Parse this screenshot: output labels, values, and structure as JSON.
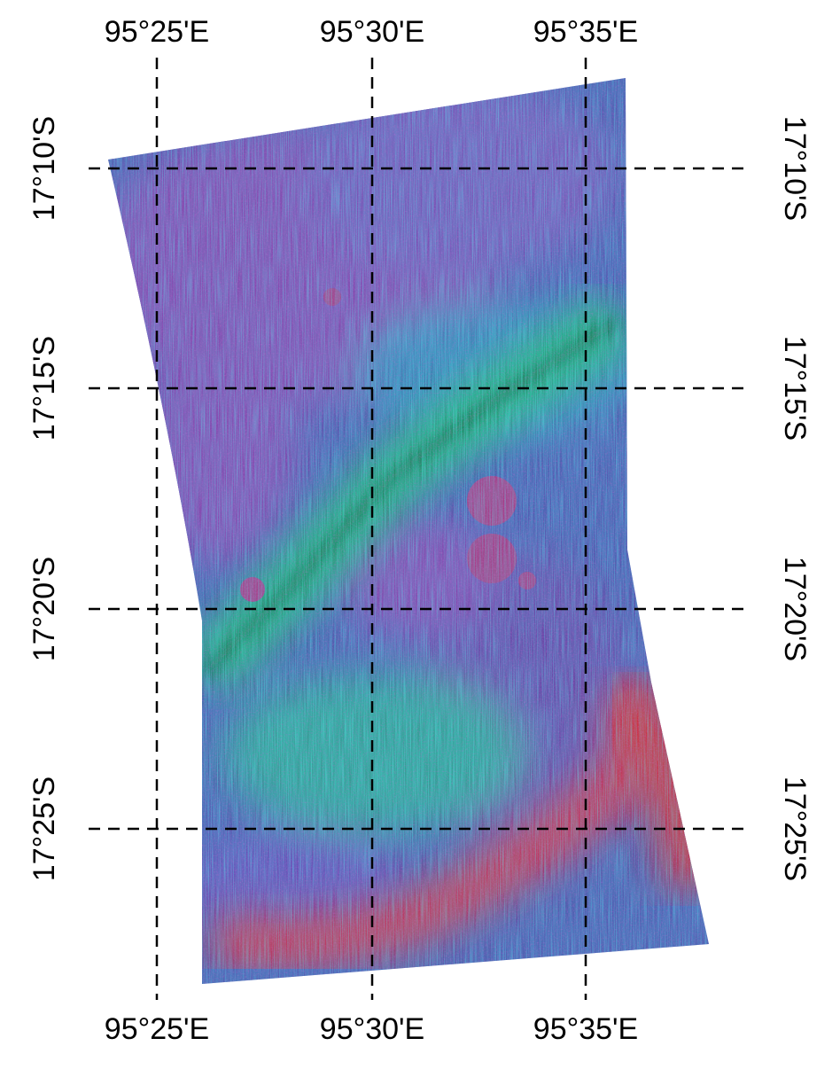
{
  "map": {
    "top_labels": [
      "95°25'E",
      "95°30'E",
      "95°35'E"
    ],
    "bottom_labels": [
      "95°25'E",
      "95°30'E",
      "95°35'E"
    ],
    "left_labels": [
      "17°10'S",
      "17°15'S",
      "17°20'S",
      "17°25'S"
    ],
    "right_labels": [
      "17°10'S",
      "17°15'S",
      "17°20'S",
      "17°25'S"
    ]
  }
}
